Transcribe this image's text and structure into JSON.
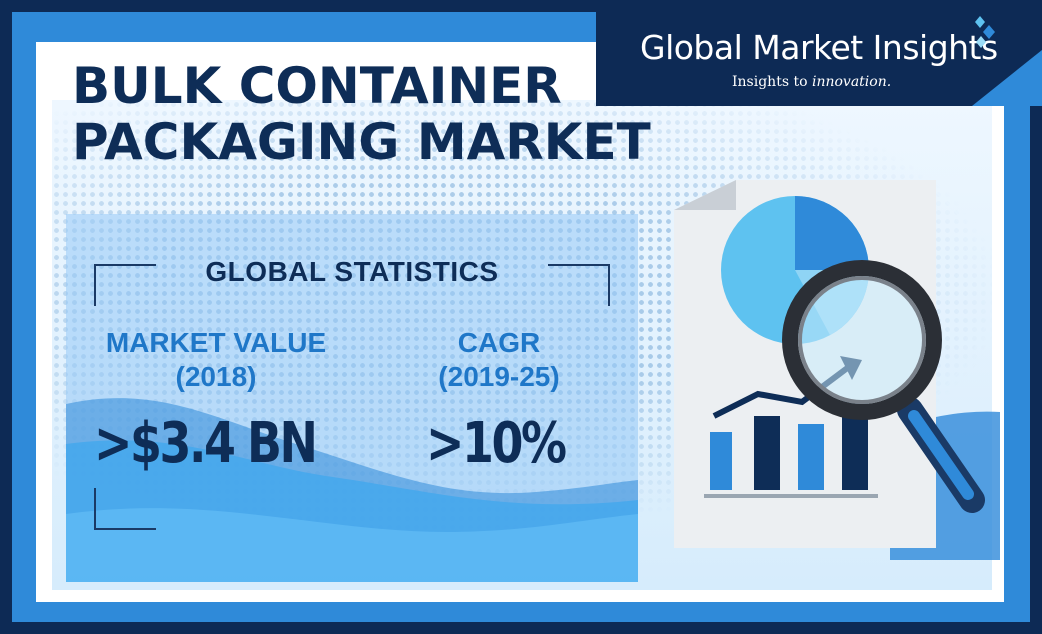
{
  "title": {
    "line1": "BULK CONTAINER",
    "line2": "PACKAGING MARKET"
  },
  "logo": {
    "name": "Global Market Insights",
    "tagline_prefix": "Insights to",
    "tagline_emphasis": "innovation."
  },
  "stats": {
    "heading": "GLOBAL STATISTICS",
    "market_value": {
      "label_line1": "MARKET VALUE",
      "label_line2": "(2018)",
      "value": ">$3.4 BN"
    },
    "cagr": {
      "label_line1": "CAGR",
      "label_line2": "(2019-25)",
      "value": ">10%"
    }
  },
  "colors": {
    "navy": "#0d2a55",
    "accent_blue": "#2f8ad9",
    "label_blue": "#1f77c8"
  },
  "illustration": {
    "icons": [
      "document-icon",
      "pie-chart-icon",
      "bar-chart-icon",
      "trend-arrow-icon",
      "magnifier-icon"
    ]
  }
}
